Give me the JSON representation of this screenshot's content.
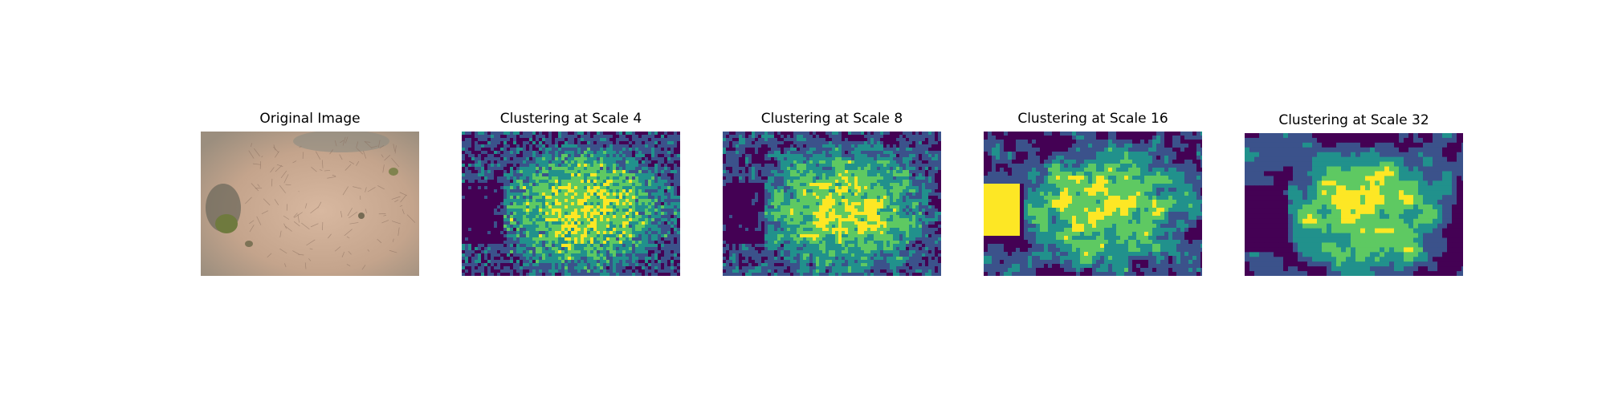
{
  "panels": [
    {
      "title": "Original Image",
      "kind": "photo"
    },
    {
      "title": "Clustering at Scale 4",
      "kind": "clusters",
      "scale": 4
    },
    {
      "title": "Clustering at Scale 8",
      "kind": "clusters",
      "scale": 8
    },
    {
      "title": "Clustering at Scale 16",
      "kind": "clusters",
      "scale": 16
    },
    {
      "title": "Clustering at Scale 32",
      "kind": "clusters",
      "scale": 32
    }
  ],
  "colors": {
    "cluster_palette": [
      "#440154",
      "#3b528b",
      "#21918c",
      "#5ec962",
      "#fde725"
    ],
    "photo_soil": "#c8a58a",
    "photo_shadow": "#6e6a5c",
    "photo_veg": "#6f7a3e"
  }
}
